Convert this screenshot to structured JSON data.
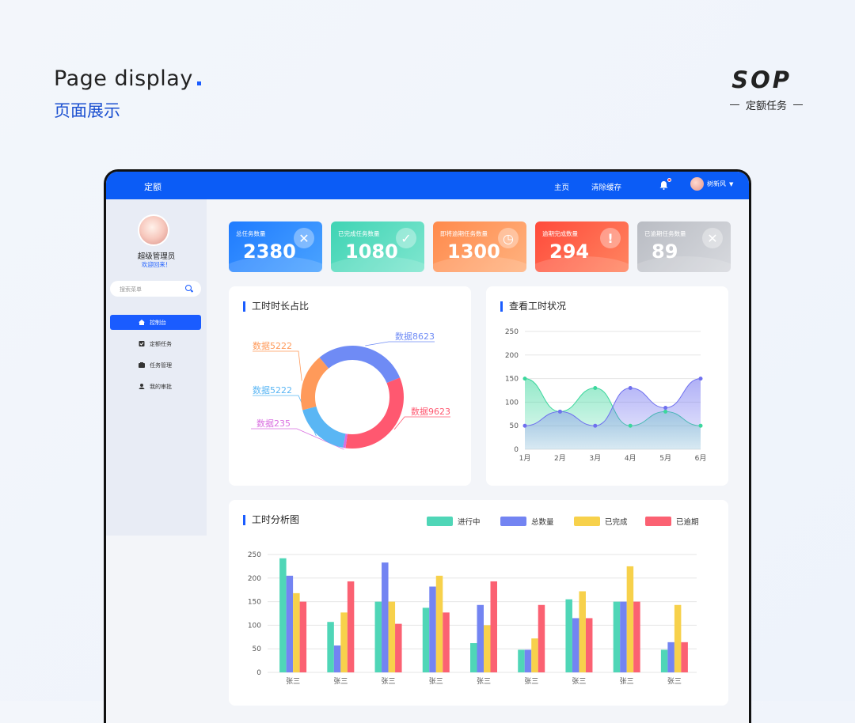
{
  "header": {
    "en": "Page display",
    "zh": "页面展示",
    "brand": "SOP",
    "brand_sub": "定额任务"
  },
  "app": {
    "brand": "定额",
    "nav": [
      "主页",
      "清除缓存"
    ],
    "user": "树新风"
  },
  "sidebar": {
    "username": "超级管理员",
    "welcome": "欢迎回来！",
    "search_placeholder": "搜索菜单",
    "items": [
      {
        "label": "控制台",
        "active": true
      },
      {
        "label": "定额任务"
      },
      {
        "label": "任务管理"
      },
      {
        "label": "我的审批"
      }
    ]
  },
  "cards": [
    {
      "title": "总任务数量",
      "value": "2380",
      "color_from": "#1f7bff",
      "color_to": "#4aa3ff",
      "icon": "document-x-icon"
    },
    {
      "title": "已完成任务数量",
      "value": "1080",
      "color_from": "#3fd4b4",
      "color_to": "#7fe6cf",
      "icon": "check-icon"
    },
    {
      "title": "即将逾期任务数量",
      "value": "1300",
      "color_from": "#ff8a4c",
      "color_to": "#ffb27f",
      "icon": "clock-icon"
    },
    {
      "title": "逾期完成数量",
      "value": "294",
      "color_from": "#ff4a3b",
      "color_to": "#ff8560",
      "icon": "alert-icon"
    },
    {
      "title": "已逾期任务数量",
      "value": "89",
      "color_from": "#b9bcc3",
      "color_to": "#d7d9de",
      "icon": "close-icon"
    }
  ],
  "donut": {
    "title": "工时时长占比"
  },
  "line": {
    "title": "查看工时状况"
  },
  "bar": {
    "title": "工时分析图"
  },
  "chart_data": [
    {
      "type": "pie",
      "title": "工时时长占比",
      "labels": [
        "数据8623",
        "数据9623",
        "数据235",
        "数据5222",
        "数据5222"
      ],
      "values": [
        8623,
        9623,
        235,
        5222,
        5222
      ],
      "colors": [
        "#6f8bf5",
        "#ff5870",
        "#d96ee0",
        "#5ab6f4",
        "#ff9a5a"
      ]
    },
    {
      "type": "area",
      "title": "查看工时状况",
      "x": [
        "1月",
        "2月",
        "3月",
        "4月",
        "5月",
        "6月"
      ],
      "ylim": [
        0,
        250
      ],
      "yticks": [
        0,
        50,
        100,
        150,
        200,
        250
      ],
      "series": [
        {
          "values": [
            150,
            80,
            130,
            50,
            80,
            50
          ],
          "color": "#3cd79d"
        },
        {
          "values": [
            50,
            80,
            50,
            130,
            88,
            150
          ],
          "color": "#6f70ef"
        }
      ]
    },
    {
      "type": "bar",
      "title": "工时分析图",
      "categories": [
        "张三",
        "张三",
        "张三",
        "张三",
        "张三",
        "张三",
        "张三",
        "张三",
        "张三"
      ],
      "ylim": [
        0,
        250
      ],
      "yticks": [
        0,
        50,
        100,
        150,
        200,
        250
      ],
      "series": [
        {
          "name": "进行中",
          "color": "#4fd6b7",
          "values": [
            242,
            107,
            150,
            137,
            62,
            48,
            155,
            150,
            48
          ]
        },
        {
          "name": "总数量",
          "color": "#7384f2",
          "values": [
            205,
            57,
            233,
            182,
            143,
            48,
            115,
            150,
            64
          ]
        },
        {
          "name": "已完成",
          "color": "#f7d14b",
          "values": [
            168,
            127,
            150,
            205,
            100,
            72,
            172,
            225,
            143
          ]
        },
        {
          "name": "已逾期",
          "color": "#fb6172",
          "values": [
            150,
            193,
            103,
            127,
            193,
            143,
            115,
            150,
            64
          ]
        }
      ]
    }
  ]
}
